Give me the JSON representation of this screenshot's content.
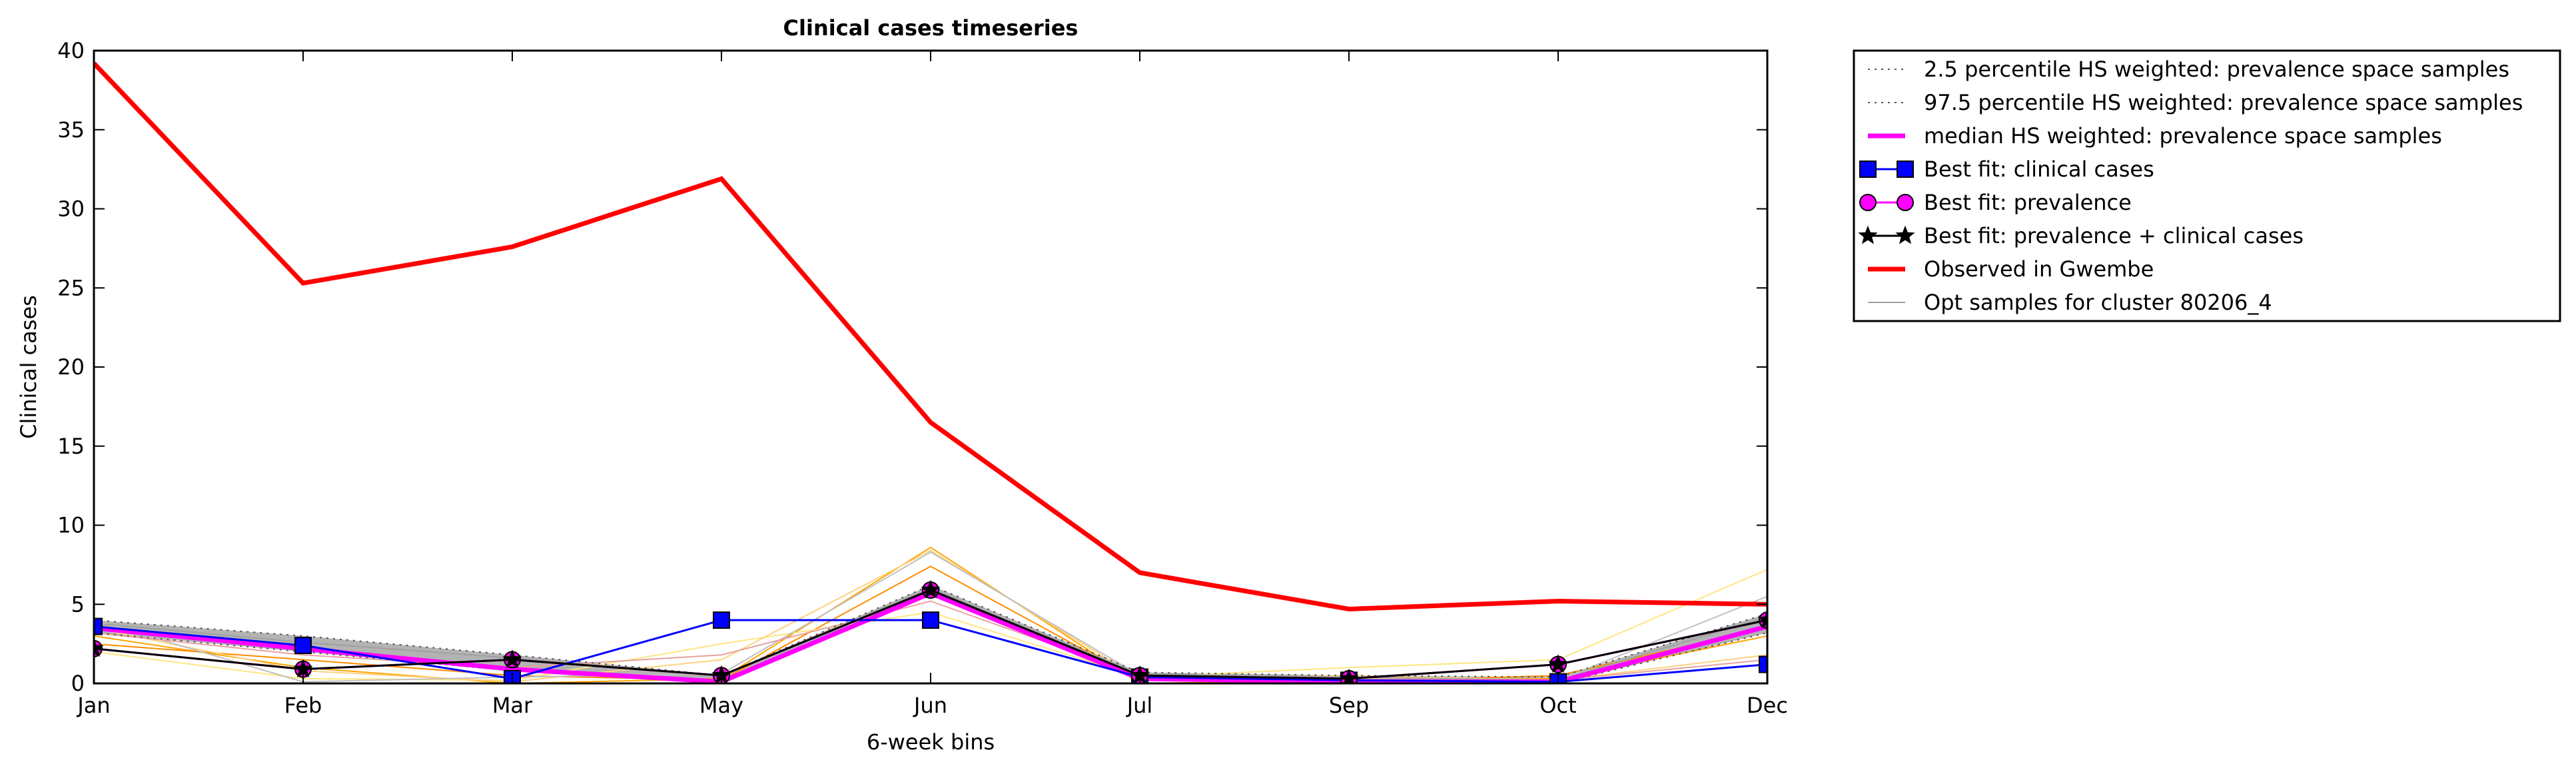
{
  "chart_data": {
    "type": "line",
    "title": "Clinical cases timeseries",
    "xlabel": "6-week bins",
    "ylabel": "Clinical cases",
    "ylim": [
      0,
      40
    ],
    "yticks": [
      "0",
      "5",
      "10",
      "15",
      "20",
      "25",
      "30",
      "35",
      "40"
    ],
    "categories": [
      "Jan",
      "Feb",
      "Mar",
      "May",
      "Jun",
      "Jul",
      "Sep",
      "Oct",
      "Dec"
    ],
    "grid": false,
    "legend_position": "outside-right",
    "colors": {
      "observed": "#ff0000",
      "median": "#ff00ff",
      "best_clinical": "#0000ff",
      "best_prevalence": "#ff00ff",
      "best_both": "#000000",
      "percentile": "#555555",
      "band_fill": "#a0a0a0",
      "samples": "#a0a0a0"
    },
    "series": [
      {
        "name": "2.5 percentile HS weighted: prevalence space samples",
        "key": "p2_5",
        "style": "dotted",
        "values": [
          3.2,
          2.0,
          0.8,
          0.0,
          5.6,
          0.2,
          0.0,
          0.0,
          3.2
        ]
      },
      {
        "name": "97.5 percentile HS weighted: prevalence space samples",
        "key": "p97_5",
        "style": "dotted",
        "values": [
          4.0,
          3.0,
          1.8,
          0.5,
          6.2,
          0.7,
          0.5,
          0.4,
          4.4
        ]
      },
      {
        "name": "median HS weighted: prevalence space samples",
        "key": "median",
        "style": "solid",
        "values": [
          3.5,
          2.2,
          0.9,
          0.1,
          5.7,
          0.3,
          0.1,
          0.1,
          3.6
        ]
      },
      {
        "name": "Best fit: clinical cases",
        "key": "best_clinical",
        "marker": "square",
        "values": [
          3.6,
          2.4,
          0.3,
          4.0,
          4.0,
          0.4,
          0.2,
          0.1,
          1.2
        ]
      },
      {
        "name": "Best fit: prevalence",
        "key": "best_prevalence",
        "marker": "circle",
        "values": [
          2.2,
          0.9,
          1.5,
          0.5,
          5.9,
          0.5,
          0.3,
          1.2,
          4.0
        ]
      },
      {
        "name": "Best fit: prevalence + clinical cases",
        "key": "best_both",
        "marker": "star",
        "values": [
          2.2,
          0.9,
          1.5,
          0.5,
          5.9,
          0.5,
          0.3,
          1.2,
          4.0
        ]
      },
      {
        "name": "Observed in Gwembe",
        "key": "observed",
        "style": "thick",
        "values": [
          39.2,
          25.3,
          27.6,
          31.9,
          16.5,
          7.0,
          4.7,
          5.2,
          5.0
        ]
      },
      {
        "name": "Opt samples for cluster 80206_4",
        "key": "samples",
        "style": "thin",
        "values": [
          3.8,
          2.6,
          1.6,
          0.5,
          6.0,
          0.6,
          0.4,
          0.2,
          4.2
        ]
      }
    ],
    "samples": [
      {
        "color": "#ffa500",
        "values": [
          3.0,
          1.0,
          0.0,
          0.3,
          8.6,
          0.0,
          0.2,
          0.3,
          3.0
        ]
      },
      {
        "color": "#ff8c00",
        "values": [
          2.5,
          1.5,
          0.5,
          0.2,
          7.4,
          0.2,
          0.1,
          0.5,
          3.5
        ]
      },
      {
        "color": "#ffe680",
        "values": [
          2.0,
          0.3,
          0.2,
          2.5,
          4.5,
          0.4,
          1.0,
          1.5,
          7.2
        ]
      },
      {
        "color": "#ffd27f",
        "values": [
          3.5,
          0.8,
          0.1,
          1.5,
          8.4,
          0.3,
          0.5,
          0.2,
          1.8
        ]
      },
      {
        "color": "#c0c0c0",
        "values": [
          4.0,
          0.1,
          0.4,
          0.6,
          8.3,
          0.5,
          0.4,
          0.2,
          5.5
        ]
      },
      {
        "color": "#e8a0a0",
        "values": [
          3.2,
          1.8,
          1.0,
          1.8,
          5.2,
          0.5,
          0.3,
          0.2,
          1.5
        ]
      }
    ]
  }
}
